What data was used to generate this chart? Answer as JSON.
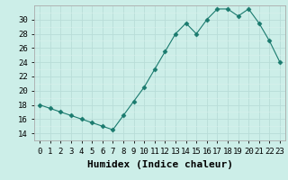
{
  "x": [
    0,
    1,
    2,
    3,
    4,
    5,
    6,
    7,
    8,
    9,
    10,
    11,
    12,
    13,
    14,
    15,
    16,
    17,
    18,
    19,
    20,
    21,
    22,
    23
  ],
  "y": [
    18,
    17.5,
    17,
    16.5,
    16,
    15.5,
    15,
    14.5,
    16.5,
    18.5,
    20.5,
    23,
    25.5,
    28,
    29.5,
    28,
    30,
    31.5,
    31.5,
    30.5,
    31.5,
    29.5,
    27,
    24
  ],
  "xlabel": "Humidex (Indice chaleur)",
  "ylim": [
    13,
    32
  ],
  "yticks": [
    14,
    16,
    18,
    20,
    22,
    24,
    26,
    28,
    30
  ],
  "xticks": [
    0,
    1,
    2,
    3,
    4,
    5,
    6,
    7,
    8,
    9,
    10,
    11,
    12,
    13,
    14,
    15,
    16,
    17,
    18,
    19,
    20,
    21,
    22,
    23
  ],
  "line_color": "#1a7a6e",
  "marker": "D",
  "marker_size": 2.5,
  "bg_color": "#cceee8",
  "grid_major_color": "#b8ddd8",
  "grid_minor_color": "#daf0ec",
  "fig_bg": "#cceee8",
  "xlabel_fontsize": 8,
  "tick_fontsize": 6.5
}
